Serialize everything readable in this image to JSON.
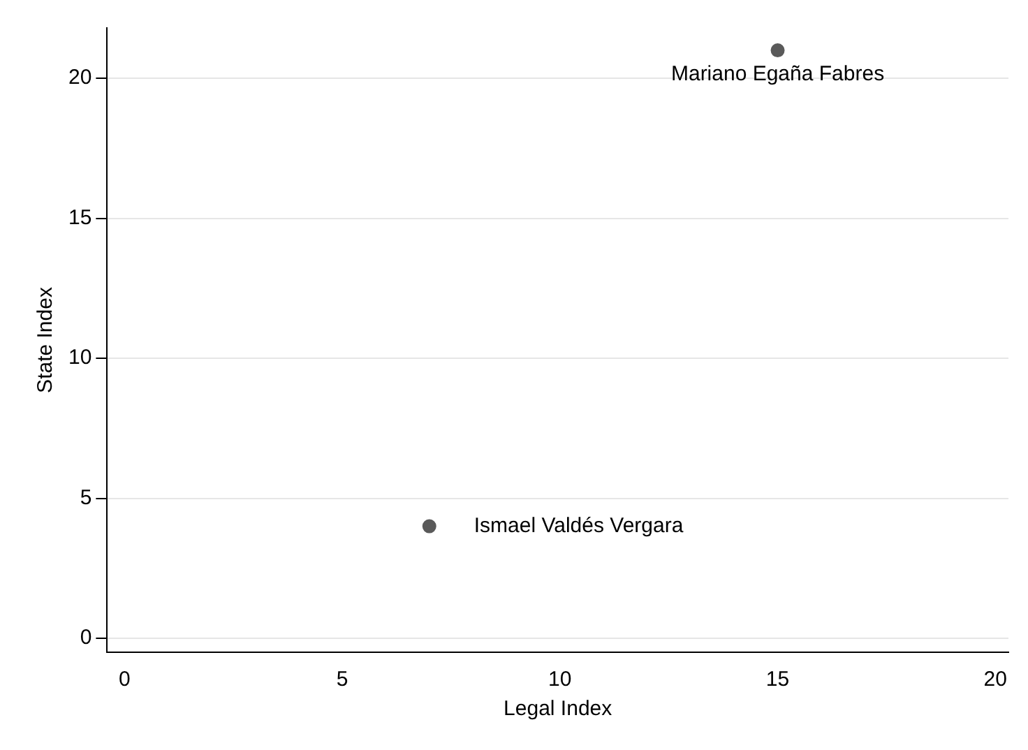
{
  "chart_data": {
    "type": "scatter",
    "xlabel": "Legal Index",
    "ylabel": "State Index",
    "x": [
      7,
      15
    ],
    "values": [
      4,
      21
    ],
    "color": "#5a5a5a",
    "marker": "circle",
    "xlim": [
      -0.4,
      20.3
    ],
    "xticks": [
      0,
      5,
      10,
      15,
      20
    ],
    "ylim": [
      -0.5,
      21.8
    ],
    "yticks": [
      0,
      5,
      10,
      15,
      20
    ],
    "grid": "y",
    "legend": false,
    "annotations": [
      {
        "text": "Ismael Valdés Vergara",
        "x": 7,
        "y": 4
      },
      {
        "text": "Mariano Egaña Fabres",
        "x": 15,
        "y": 21
      }
    ]
  }
}
